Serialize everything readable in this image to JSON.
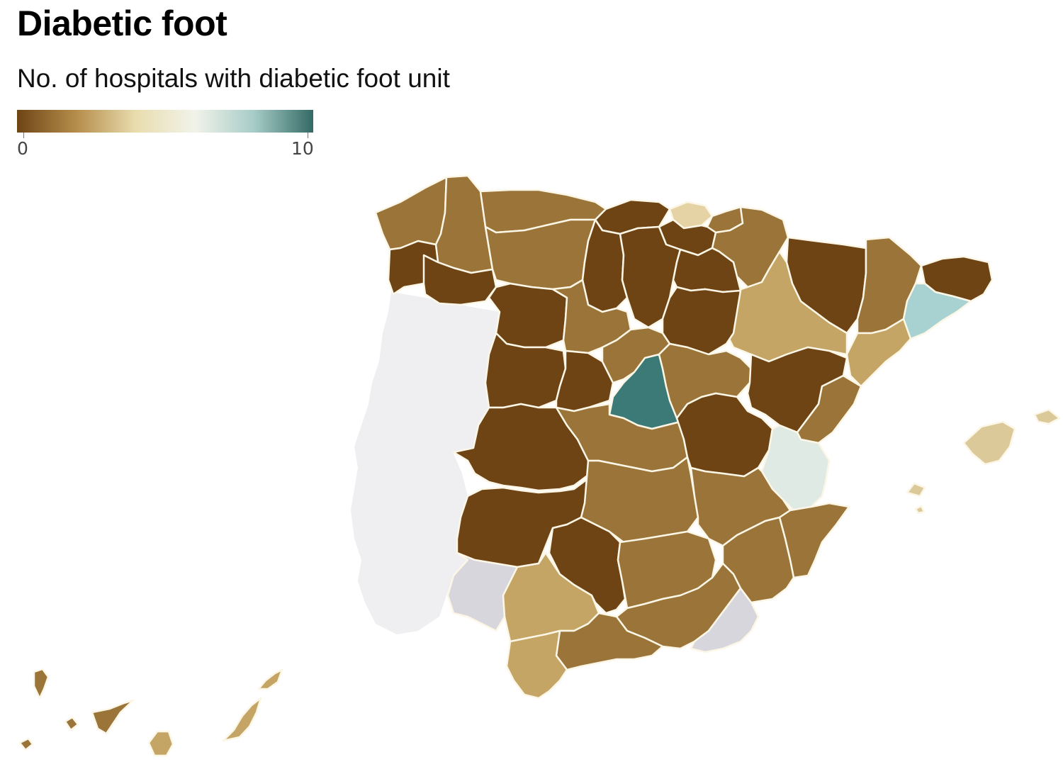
{
  "title": "Diabetic foot",
  "subtitle": "No. of hospitals with diabetic foot unit",
  "legend": {
    "min_label": "0",
    "max_label": "10",
    "min": 0,
    "max": 10,
    "color_stops": [
      "#6e4415",
      "#b58d4a",
      "#e9dcae",
      "#f1f3ea",
      "#a7ccc7",
      "#346a65"
    ]
  },
  "map_colors": {
    "portugal": "#efeff1",
    "no_data": "#d6d6dc",
    "boundary": "#fbf6e6"
  },
  "regions": [
    {
      "id": "coruna",
      "value": 2,
      "fill": "#9a7438"
    },
    {
      "id": "lugo",
      "value": 2,
      "fill": "#9a7438"
    },
    {
      "id": "pontevedra",
      "value": 0,
      "fill": "#6e4415"
    },
    {
      "id": "ourense",
      "value": 0,
      "fill": "#6e4415"
    },
    {
      "id": "asturias",
      "value": 2,
      "fill": "#9a7438"
    },
    {
      "id": "cantabria",
      "value": 0,
      "fill": "#6e4415"
    },
    {
      "id": "bizkaia",
      "value": 3,
      "fill": "#e6d3a5"
    },
    {
      "id": "gipuzkoa",
      "value": 2,
      "fill": "#9a7438"
    },
    {
      "id": "alava",
      "value": 0,
      "fill": "#6e4415"
    },
    {
      "id": "navarra",
      "value": 2,
      "fill": "#9a7438"
    },
    {
      "id": "huesca",
      "value": 0,
      "fill": "#6e4415"
    },
    {
      "id": "lleida",
      "value": 2,
      "fill": "#9a7438"
    },
    {
      "id": "girona",
      "value": 0,
      "fill": "#6e4415"
    },
    {
      "id": "barcelona",
      "value": 7,
      "fill": "#a8d2d1"
    },
    {
      "id": "tarragona",
      "value": 3,
      "fill": "#c4a565"
    },
    {
      "id": "zaragoza",
      "value": 3,
      "fill": "#c4a565"
    },
    {
      "id": "leon",
      "value": 2,
      "fill": "#9a7438"
    },
    {
      "id": "palencia",
      "value": 0,
      "fill": "#6e4415"
    },
    {
      "id": "burgos",
      "value": 0,
      "fill": "#6e4415"
    },
    {
      "id": "larioja",
      "value": 0,
      "fill": "#6e4415"
    },
    {
      "id": "zamora",
      "value": 0,
      "fill": "#6e4415"
    },
    {
      "id": "valladolid",
      "value": 2,
      "fill": "#9a7438"
    },
    {
      "id": "soria",
      "value": 0,
      "fill": "#6e4415"
    },
    {
      "id": "salamanca",
      "value": 0,
      "fill": "#6e4415"
    },
    {
      "id": "avila",
      "value": 0,
      "fill": "#6e4415"
    },
    {
      "id": "segovia",
      "value": 2,
      "fill": "#9a7438"
    },
    {
      "id": "guadalajara",
      "value": 2,
      "fill": "#9a7438"
    },
    {
      "id": "madrid",
      "value": 9,
      "fill": "#3b7a76"
    },
    {
      "id": "teruel",
      "value": 0,
      "fill": "#6e4415"
    },
    {
      "id": "castellon",
      "value": 2,
      "fill": "#9a7438"
    },
    {
      "id": "caceres",
      "value": 0,
      "fill": "#6e4415"
    },
    {
      "id": "badajoz",
      "value": 0,
      "fill": "#6e4415"
    },
    {
      "id": "toledo",
      "value": 2,
      "fill": "#9a7438"
    },
    {
      "id": "cuenca",
      "value": 0,
      "fill": "#6e4415"
    },
    {
      "id": "valencia",
      "value": 6,
      "fill": "#dfeae5"
    },
    {
      "id": "ciudadreal",
      "value": 2,
      "fill": "#9a7438"
    },
    {
      "id": "albacete",
      "value": 2,
      "fill": "#9a7438"
    },
    {
      "id": "alicante",
      "value": 2,
      "fill": "#9a7438"
    },
    {
      "id": "murcia",
      "value": 2,
      "fill": "#9a7438"
    },
    {
      "id": "huelva",
      "value": null,
      "fill": "#d6d6dc"
    },
    {
      "id": "sevilla",
      "value": 3,
      "fill": "#c4a565"
    },
    {
      "id": "cordoba",
      "value": 0,
      "fill": "#6e4415"
    },
    {
      "id": "jaen",
      "value": 2,
      "fill": "#9a7438"
    },
    {
      "id": "granada",
      "value": 2,
      "fill": "#9a7438"
    },
    {
      "id": "almeria",
      "value": null,
      "fill": "#d6d6dc"
    },
    {
      "id": "malaga",
      "value": 2,
      "fill": "#9a7438"
    },
    {
      "id": "cadiz",
      "value": 3,
      "fill": "#c4a565"
    },
    {
      "id": "baleares",
      "value": 3,
      "fill": "#dcc99a"
    },
    {
      "id": "santacruz",
      "value": 2,
      "fill": "#9a7438"
    },
    {
      "id": "laspalmas",
      "value": 3,
      "fill": "#c4a565"
    }
  ]
}
